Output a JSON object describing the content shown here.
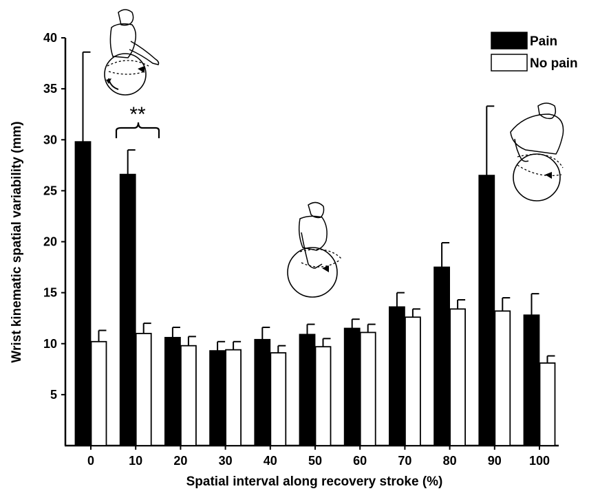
{
  "chart_data": {
    "type": "bar",
    "xlabel": "Spatial interval along recovery stroke (%)",
    "ylabel": "Wrist kinematic spatial variability (mm)",
    "categories": [
      "0",
      "10",
      "20",
      "30",
      "40",
      "50",
      "60",
      "70",
      "80",
      "90",
      "100"
    ],
    "ylim": [
      0,
      40
    ],
    "yticks": [
      "5",
      "10",
      "15",
      "20",
      "25",
      "30",
      "35",
      "40"
    ],
    "series": [
      {
        "name": "Pain",
        "color": "#000000",
        "values": [
          29.8,
          26.6,
          10.6,
          9.3,
          10.4,
          10.9,
          11.5,
          13.6,
          17.5,
          26.5,
          12.8
        ],
        "errors": [
          8.8,
          2.4,
          1.0,
          0.9,
          1.2,
          1.0,
          0.9,
          1.4,
          2.4,
          6.8,
          2.1
        ]
      },
      {
        "name": "No pain",
        "color": "#ffffff",
        "values": [
          10.2,
          11.0,
          9.8,
          9.4,
          9.1,
          9.7,
          11.1,
          12.6,
          13.4,
          13.2,
          8.1
        ],
        "errors": [
          1.1,
          1.0,
          0.9,
          0.8,
          0.7,
          0.8,
          0.8,
          0.8,
          0.9,
          1.3,
          0.7
        ]
      }
    ],
    "annotations": [
      {
        "text": "**",
        "category": "10"
      }
    ],
    "legend": "top-right",
    "grid": false
  }
}
